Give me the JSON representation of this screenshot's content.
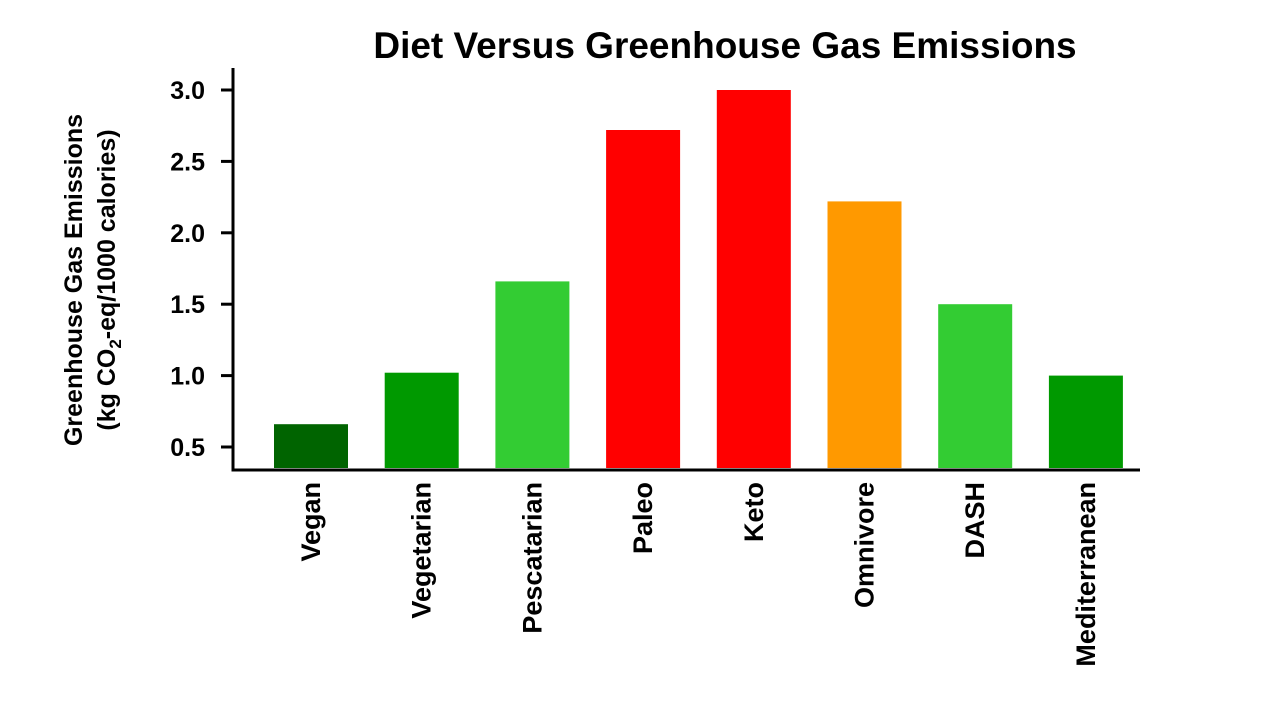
{
  "chart_data": {
    "type": "bar",
    "title": "Diet Versus Greenhouse Gas Emissions",
    "ylabel_line1": "Greenhouse Gas Emissions",
    "ylabel_line2": {
      "prefix": "(kg CO",
      "subscript": "2",
      "suffix": "-eq/1000 calories)"
    },
    "xlabel": "",
    "categories": [
      "Vegan",
      "Vegetarian",
      "Pescatarian",
      "Paleo",
      "Keto",
      "Omnivore",
      "DASH",
      "Mediterranean"
    ],
    "values": [
      0.66,
      1.02,
      1.66,
      2.72,
      3.0,
      2.22,
      1.5,
      1.0
    ],
    "colors": [
      "#006400",
      "#009900",
      "#33cc33",
      "#ff0000",
      "#ff0000",
      "#ff9900",
      "#33cc33",
      "#009900"
    ],
    "yticks": [
      0.5,
      1.0,
      1.5,
      2.0,
      2.5,
      3.0
    ],
    "ytick_labels": [
      "0.5",
      "1.0",
      "1.5",
      "2.0",
      "2.5",
      "3.0"
    ],
    "ylim": [
      0.35,
      3.15
    ],
    "grid": false,
    "legend": "none"
  }
}
